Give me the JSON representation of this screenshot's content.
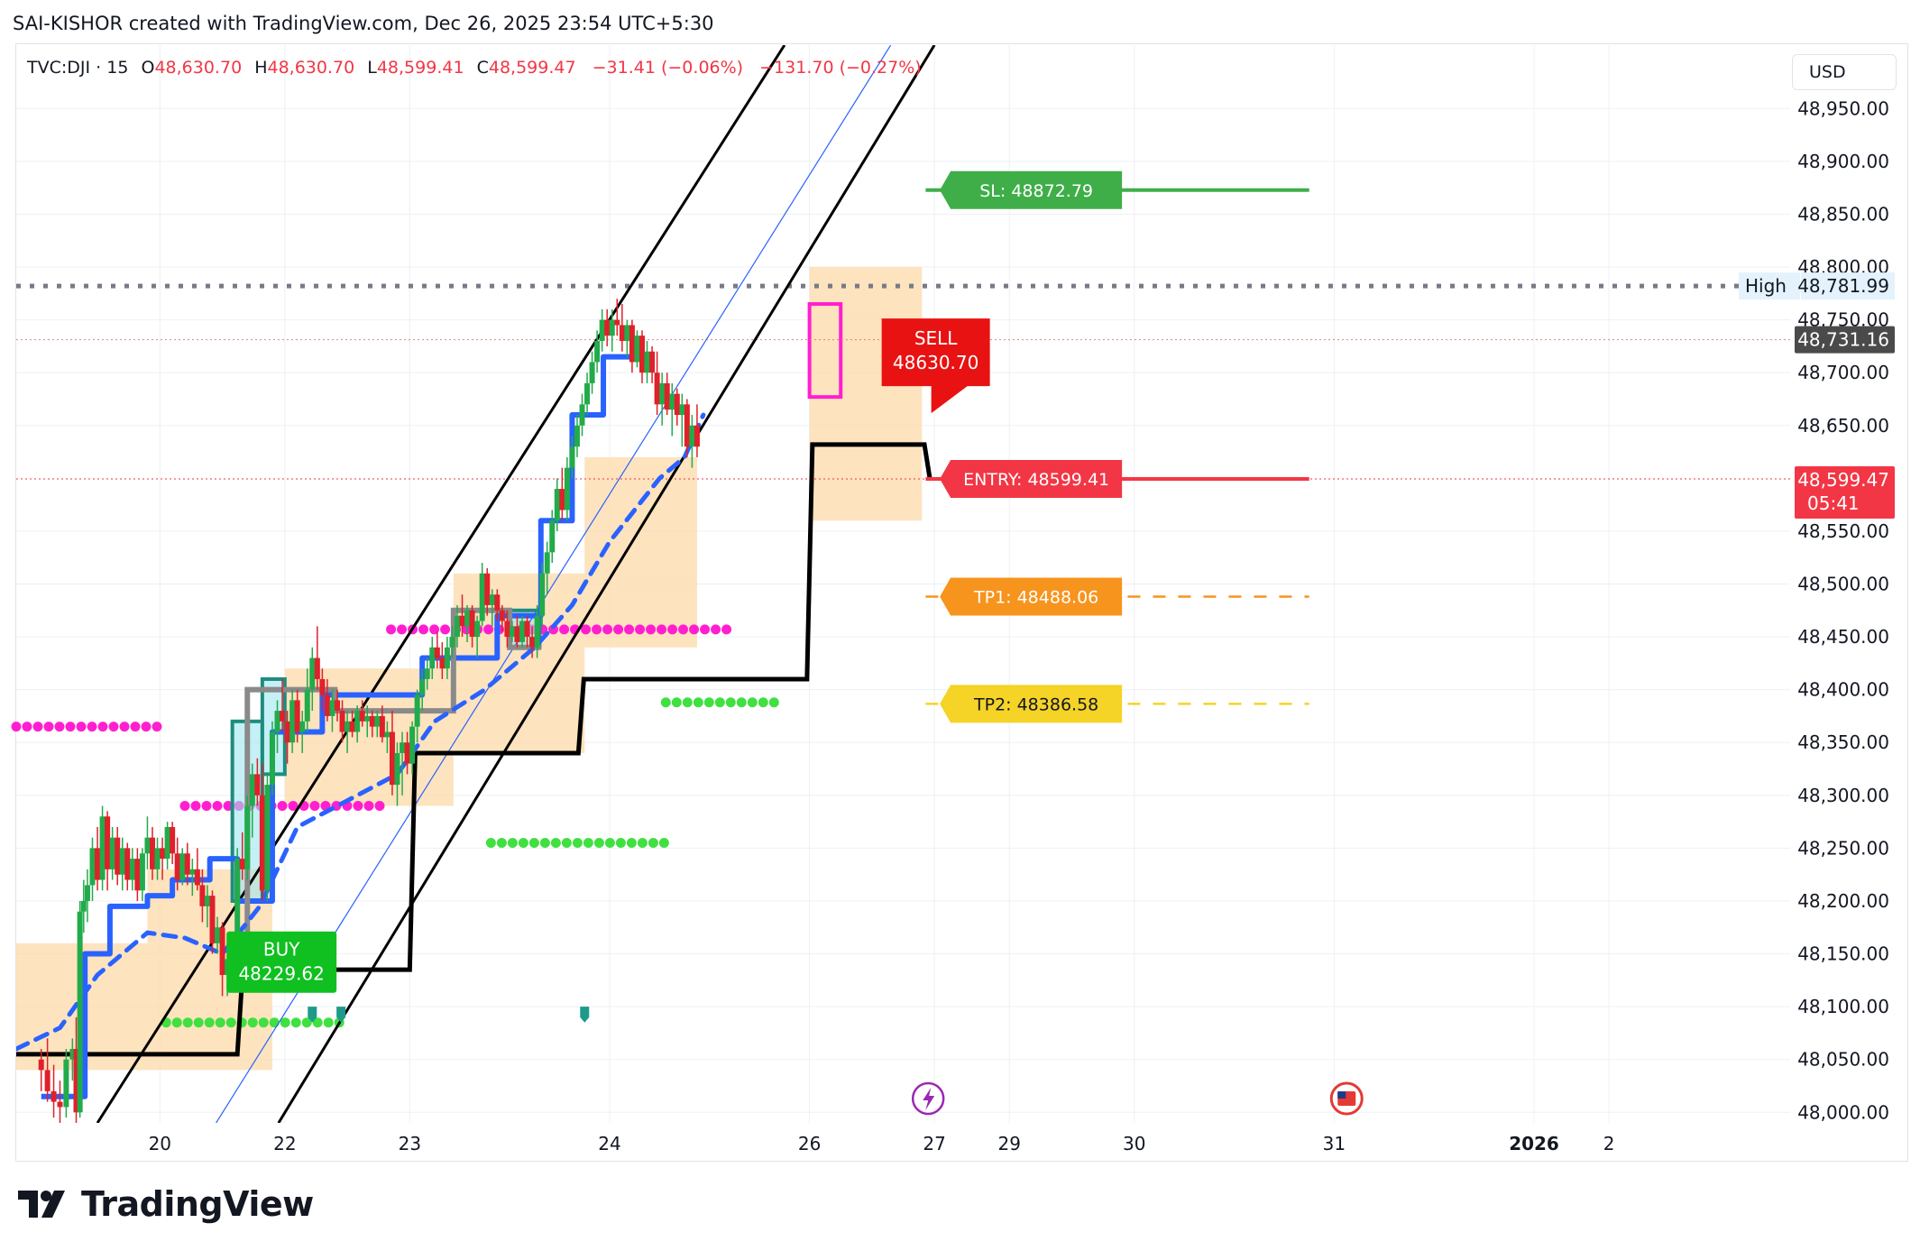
{
  "header": {
    "attribution": "SAI-KISHOR created with TradingView.com, Dec 26, 2025 23:54 UTC+5:30"
  },
  "legend": {
    "symbol": "TVC:DJI",
    "interval": "15",
    "open_label": "O",
    "open": "48,630.70",
    "high_label": "H",
    "high": "48,630.70",
    "low_label": "L",
    "low": "48,599.41",
    "close_label": "C",
    "close": "48,599.47",
    "change": "−31.41 (−0.06%)",
    "change2": "−131.70 (−0.27%)"
  },
  "currency": "USD",
  "brand": {
    "name": "TradingView"
  },
  "colors": {
    "up": "#22ab4a",
    "down": "#e0202a",
    "blue": "#2962ff",
    "black": "#000000",
    "magenta": "#ff1fd0",
    "lime": "#40e040",
    "zone": "#fcd9a8",
    "sl": "#3fae49",
    "entry": "#f23645",
    "tp1": "#f7941d",
    "tp2": "#f5d327",
    "teal": "#1e8c7e",
    "grid": "#eef0f3"
  },
  "chart_data": {
    "type": "line",
    "title": "",
    "ylim": [
      47990,
      49010
    ],
    "xlim": [
      18.85,
      33.05
    ],
    "y_ticks": [
      48000,
      48050,
      48100,
      48150,
      48200,
      48250,
      48300,
      48350,
      48400,
      48450,
      48500,
      48550,
      48650,
      48700,
      48750,
      48800,
      48850,
      48900,
      48950
    ],
    "y_tick_labels": [
      "48,000.00",
      "48,050.00",
      "48,100.00",
      "48,150.00",
      "48,200.00",
      "48,250.00",
      "48,300.00",
      "48,350.00",
      "48,400.00",
      "48,450.00",
      "48,500.00",
      "48,550.00",
      "48,650.00",
      "48,700.00",
      "48,750.00",
      "48,800.00",
      "48,850.00",
      "48,900.00",
      "48,950.00"
    ],
    "x_ticks": [
      {
        "x": 20.0,
        "label": "20",
        "bold": false
      },
      {
        "x": 21.0,
        "label": "22",
        "bold": false
      },
      {
        "x": 22.0,
        "label": "23",
        "bold": false
      },
      {
        "x": 23.6,
        "label": "24",
        "bold": false
      },
      {
        "x": 25.2,
        "label": "26",
        "bold": false
      },
      {
        "x": 26.2,
        "label": "27",
        "bold": false
      },
      {
        "x": 26.8,
        "label": "29",
        "bold": false
      },
      {
        "x": 27.8,
        "label": "30",
        "bold": false
      },
      {
        "x": 29.4,
        "label": "31",
        "bold": false
      },
      {
        "x": 31.0,
        "label": "2026",
        "bold": true
      },
      {
        "x": 31.6,
        "label": "2",
        "bold": false
      }
    ],
    "candles": [
      [
        19.05,
        48050,
        48060,
        48020,
        48040
      ],
      [
        19.1,
        48040,
        48070,
        48010,
        48020
      ],
      [
        19.15,
        48020,
        48045,
        47995,
        48010
      ],
      [
        19.2,
        48010,
        48030,
        47990,
        48005
      ],
      [
        19.25,
        48005,
        48060,
        47995,
        48050
      ],
      [
        19.3,
        48050,
        48070,
        48030,
        48060
      ],
      [
        19.33,
        48060,
        48090,
        47990,
        48000
      ],
      [
        19.36,
        48000,
        48200,
        47995,
        48190
      ],
      [
        19.39,
        48190,
        48220,
        48170,
        48200
      ],
      [
        19.42,
        48200,
        48230,
        48180,
        48215
      ],
      [
        19.46,
        48215,
        48260,
        48200,
        48250
      ],
      [
        19.5,
        48250,
        48270,
        48210,
        48220
      ],
      [
        19.54,
        48220,
        48290,
        48210,
        48280
      ],
      [
        19.58,
        48280,
        48285,
        48210,
        48230
      ],
      [
        19.62,
        48230,
        48270,
        48220,
        48260
      ],
      [
        19.66,
        48260,
        48270,
        48215,
        48225
      ],
      [
        19.7,
        48225,
        48260,
        48210,
        48250
      ],
      [
        19.74,
        48250,
        48255,
        48210,
        48220
      ],
      [
        19.78,
        48220,
        48250,
        48210,
        48240
      ],
      [
        19.82,
        48240,
        48250,
        48200,
        48210
      ],
      [
        19.86,
        48210,
        48250,
        48200,
        48245
      ],
      [
        19.9,
        48245,
        48280,
        48230,
        48260
      ],
      [
        19.94,
        48260,
        48270,
        48220,
        48230
      ],
      [
        19.98,
        48230,
        48260,
        48220,
        48250
      ],
      [
        20.02,
        48250,
        48260,
        48220,
        48240
      ],
      [
        20.06,
        48240,
        48275,
        48230,
        48270
      ],
      [
        20.1,
        48270,
        48275,
        48235,
        48245
      ],
      [
        20.14,
        48245,
        48260,
        48210,
        48220
      ],
      [
        20.18,
        48220,
        48250,
        48215,
        48245
      ],
      [
        20.22,
        48245,
        48255,
        48215,
        48225
      ],
      [
        20.26,
        48225,
        48240,
        48205,
        48230
      ],
      [
        20.3,
        48230,
        48250,
        48210,
        48215
      ],
      [
        20.34,
        48215,
        48230,
        48180,
        48195
      ],
      [
        20.38,
        48195,
        48215,
        48175,
        48205
      ],
      [
        20.42,
        48205,
        48210,
        48150,
        48160
      ],
      [
        20.46,
        48160,
        48185,
        48150,
        48175
      ],
      [
        20.5,
        48175,
        48180,
        48110,
        48130
      ],
      [
        20.54,
        48130,
        48150,
        48110,
        48145
      ],
      [
        20.58,
        48145,
        48150,
        48120,
        48135
      ],
      [
        20.62,
        48135,
        48250,
        48130,
        48240
      ],
      [
        20.66,
        48240,
        48265,
        48220,
        48230
      ],
      [
        20.7,
        48230,
        48300,
        48220,
        48290
      ],
      [
        20.74,
        48290,
        48330,
        48260,
        48320
      ],
      [
        20.78,
        48320,
        48335,
        48290,
        48300
      ],
      [
        20.82,
        48300,
        48330,
        48200,
        48210
      ],
      [
        20.86,
        48210,
        48320,
        48200,
        48310
      ],
      [
        20.9,
        48310,
        48370,
        48300,
        48360
      ],
      [
        20.94,
        48360,
        48390,
        48340,
        48380
      ],
      [
        20.98,
        48380,
        48410,
        48360,
        48370
      ],
      [
        21.02,
        48370,
        48380,
        48330,
        48350
      ],
      [
        21.06,
        48350,
        48400,
        48340,
        48390
      ],
      [
        21.1,
        48390,
        48400,
        48350,
        48360
      ],
      [
        21.14,
        48360,
        48380,
        48340,
        48370
      ],
      [
        21.18,
        48370,
        48420,
        48360,
        48400
      ],
      [
        21.22,
        48400,
        48440,
        48380,
        48430
      ],
      [
        21.26,
        48430,
        48460,
        48400,
        48410
      ],
      [
        21.3,
        48410,
        48420,
        48380,
        48395
      ],
      [
        21.34,
        48395,
        48410,
        48370,
        48375
      ],
      [
        21.38,
        48375,
        48400,
        48360,
        48390
      ],
      [
        21.42,
        48390,
        48400,
        48370,
        48380
      ],
      [
        21.46,
        48380,
        48390,
        48350,
        48360
      ],
      [
        21.5,
        48360,
        48380,
        48340,
        48370
      ],
      [
        21.54,
        48370,
        48380,
        48355,
        48360
      ],
      [
        21.58,
        48360,
        48385,
        48350,
        48380
      ],
      [
        21.62,
        48380,
        48390,
        48365,
        48370
      ],
      [
        21.66,
        48370,
        48385,
        48355,
        48375
      ],
      [
        21.7,
        48375,
        48380,
        48355,
        48365
      ],
      [
        21.74,
        48365,
        48380,
        48355,
        48375
      ],
      [
        21.78,
        48375,
        48385,
        48350,
        48355
      ],
      [
        21.82,
        48355,
        48370,
        48340,
        48360
      ],
      [
        21.86,
        48360,
        48380,
        48300,
        48310
      ],
      [
        21.9,
        48310,
        48350,
        48290,
        48340
      ],
      [
        21.94,
        48340,
        48360,
        48300,
        48350
      ],
      [
        21.98,
        48350,
        48360,
        48320,
        48330
      ],
      [
        22.02,
        48330,
        48370,
        48320,
        48365
      ],
      [
        22.06,
        48365,
        48400,
        48350,
        48395
      ],
      [
        22.1,
        48395,
        48420,
        48380,
        48410
      ],
      [
        22.14,
        48410,
        48430,
        48400,
        48420
      ],
      [
        22.18,
        48420,
        48450,
        48410,
        48440
      ],
      [
        22.22,
        48440,
        48455,
        48420,
        48430
      ],
      [
        22.26,
        48430,
        48445,
        48410,
        48420
      ],
      [
        22.3,
        48420,
        48450,
        48410,
        48440
      ],
      [
        22.34,
        48440,
        48460,
        48430,
        48450
      ],
      [
        22.38,
        48450,
        48480,
        48440,
        48470
      ],
      [
        22.42,
        48470,
        48490,
        48450,
        48460
      ],
      [
        22.46,
        48460,
        48480,
        48445,
        48475
      ],
      [
        22.5,
        48475,
        48480,
        48440,
        48450
      ],
      [
        22.54,
        48450,
        48470,
        48430,
        48465
      ],
      [
        22.58,
        48465,
        48520,
        48460,
        48510
      ],
      [
        22.62,
        48510,
        48515,
        48470,
        48480
      ],
      [
        22.66,
        48480,
        48495,
        48460,
        48490
      ],
      [
        22.7,
        48490,
        48495,
        48465,
        48475
      ],
      [
        22.74,
        48475,
        48480,
        48455,
        48465
      ],
      [
        22.78,
        48465,
        48475,
        48440,
        48450
      ],
      [
        22.82,
        48450,
        48465,
        48445,
        48460
      ],
      [
        22.86,
        48460,
        48470,
        48440,
        48445
      ],
      [
        22.9,
        48445,
        48470,
        48440,
        48465
      ],
      [
        22.94,
        48465,
        48470,
        48440,
        48450
      ],
      [
        22.98,
        48450,
        48460,
        48430,
        48440
      ],
      [
        23.02,
        48440,
        48480,
        48430,
        48470
      ],
      [
        23.06,
        48470,
        48520,
        48460,
        48510
      ],
      [
        23.1,
        48510,
        48540,
        48490,
        48530
      ],
      [
        23.14,
        48530,
        48570,
        48520,
        48560
      ],
      [
        23.18,
        48560,
        48600,
        48550,
        48590
      ],
      [
        23.22,
        48590,
        48610,
        48560,
        48570
      ],
      [
        23.26,
        48570,
        48620,
        48560,
        48610
      ],
      [
        23.3,
        48610,
        48640,
        48600,
        48630
      ],
      [
        23.34,
        48630,
        48660,
        48620,
        48650
      ],
      [
        23.38,
        48650,
        48680,
        48640,
        48670
      ],
      [
        23.42,
        48670,
        48700,
        48660,
        48690
      ],
      [
        23.46,
        48690,
        48720,
        48680,
        48710
      ],
      [
        23.5,
        48710,
        48740,
        48700,
        48730
      ],
      [
        23.54,
        48730,
        48760,
        48720,
        48750
      ],
      [
        23.58,
        48750,
        48760,
        48725,
        48735
      ],
      [
        23.62,
        48735,
        48760,
        48720,
        48750
      ],
      [
        23.66,
        48750,
        48770,
        48735,
        48745
      ],
      [
        23.7,
        48745,
        48765,
        48720,
        48730
      ],
      [
        23.74,
        48730,
        48750,
        48715,
        48745
      ],
      [
        23.78,
        48745,
        48750,
        48700,
        48710
      ],
      [
        23.82,
        48710,
        48740,
        48705,
        48735
      ],
      [
        23.86,
        48735,
        48740,
        48690,
        48700
      ],
      [
        23.9,
        48700,
        48730,
        48690,
        48720
      ],
      [
        23.94,
        48720,
        48725,
        48690,
        48700
      ],
      [
        23.98,
        48700,
        48720,
        48660,
        48670
      ],
      [
        24.02,
        48670,
        48700,
        48650,
        48690
      ],
      [
        24.06,
        48690,
        48700,
        48660,
        48665
      ],
      [
        24.1,
        48665,
        48690,
        48640,
        48680
      ],
      [
        24.14,
        48680,
        48685,
        48650,
        48660
      ],
      [
        24.18,
        48660,
        48680,
        48630,
        48670
      ],
      [
        24.22,
        48670,
        48675,
        48620,
        48630
      ],
      [
        24.26,
        48630,
        48660,
        48610,
        48650
      ],
      [
        24.3,
        48650,
        48670,
        48620,
        48630
      ]
    ],
    "series": [],
    "channel": [
      {
        "x1": 19.5,
        "y1": 47990,
        "x2": 25.0,
        "y2": 49010
      },
      {
        "x1": 20.45,
        "y1": 47990,
        "x2": 25.85,
        "y2": 49010
      },
      {
        "x1": 20.95,
        "y1": 47990,
        "x2": 26.2,
        "y2": 49010
      }
    ],
    "levels": [
      {
        "name": "sl",
        "label": "SL: 48872.79",
        "value": 48872.79
      },
      {
        "name": "entry",
        "label": "ENTRY: 48599.41",
        "value": 48599.41
      },
      {
        "name": "tp1",
        "label": "TP1: 48488.06",
        "value": 48488.06
      },
      {
        "name": "tp2",
        "label": "TP2: 48386.58",
        "value": 48386.58
      }
    ],
    "high_line": {
      "label": "High",
      "value": 48781.99,
      "value_label": "48,781.99"
    },
    "prev_close": {
      "value": 48731.16,
      "label": "48,731.16"
    },
    "last_price": {
      "value": 48599.47,
      "label": "48,599.47",
      "countdown": "05:41"
    },
    "signals": [
      {
        "name": "buy",
        "line1": "BUY",
        "line2": "48229.62"
      },
      {
        "name": "sell",
        "line1": "SELL",
        "line2": "48630.70"
      }
    ]
  }
}
